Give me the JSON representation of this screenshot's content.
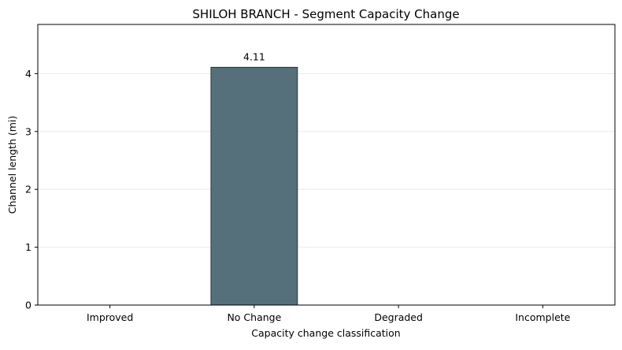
{
  "chart_data": {
    "type": "bar",
    "title": "SHILOH BRANCH - Segment Capacity Change",
    "xlabel": "Capacity change classification",
    "ylabel": "Channel length (mi)",
    "categories": [
      "Improved",
      "No Change",
      "Degraded",
      "Incomplete"
    ],
    "values": [
      0,
      4.11,
      0,
      0
    ],
    "data_labels": [
      "",
      "4.11",
      "",
      ""
    ],
    "ylim": [
      0,
      4.85
    ],
    "yticks": [
      0,
      1,
      2,
      3,
      4
    ],
    "grid": "horizontal",
    "legend": "none",
    "bar_color": "#56707b",
    "bar_edge_color": "#1a1a1a"
  }
}
